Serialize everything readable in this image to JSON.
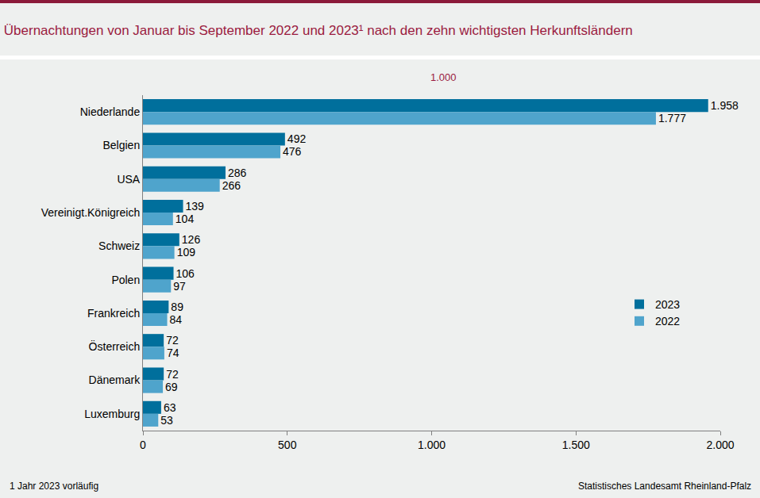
{
  "chart_data": {
    "type": "bar",
    "title": "Übernachtungen von Januar bis September 2022 und 2023¹ nach den zehn wichtigsten Herkunftsländern",
    "subtitle": "1.000",
    "footnote": "1 Jahr 2023 vorläufig",
    "source": "Statistisches Landesamt Rheinland-Pfalz",
    "orientation": "horizontal",
    "data_labels": true,
    "grid": false,
    "legend": "right",
    "categories": [
      "Niederlande",
      "Belgien",
      "USA",
      "Vereinigt.Königreich",
      "Schweiz",
      "Polen",
      "Frankreich",
      "Österreich",
      "Dänemark",
      "Luxemburg"
    ],
    "series": [
      {
        "name": "2023",
        "color": "#006f9c",
        "values": [
          1958,
          492,
          286,
          139,
          126,
          106,
          89,
          72,
          72,
          63
        ],
        "value_labels": [
          "1.958",
          "492",
          "286",
          "139",
          "126",
          "106",
          "89",
          "72",
          "72",
          "63"
        ]
      },
      {
        "name": "2022",
        "color": "#4fa4cc",
        "values": [
          1777,
          476,
          266,
          104,
          109,
          97,
          84,
          74,
          69,
          53
        ],
        "value_labels": [
          "1.777",
          "476",
          "266",
          "104",
          "109",
          "97",
          "84",
          "74",
          "69",
          "53"
        ]
      }
    ],
    "xlim": [
      0,
      2000
    ],
    "xticks": [
      0,
      500,
      {
        "value": 1000,
        "label": "1.000"
      },
      {
        "value": 1500,
        "label": "1.500"
      },
      {
        "value": 2000,
        "label": "2.000"
      }
    ]
  }
}
